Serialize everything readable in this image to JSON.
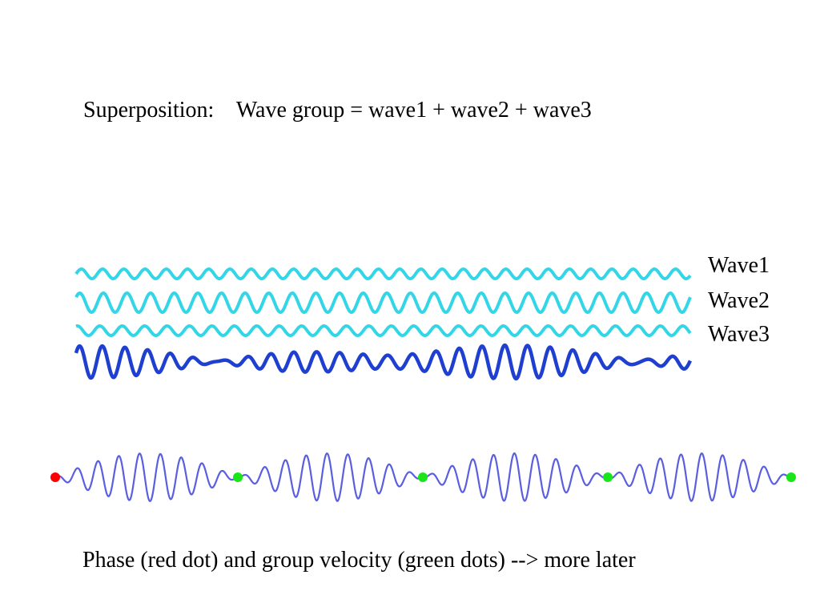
{
  "slide": {
    "title": "Superposition:    Wave group = wave1 + wave2 + wave3",
    "caption": "Phase (red dot) and group velocity (green dots) --> more later",
    "wave_labels": [
      "Wave1",
      "Wave2",
      "Wave3"
    ]
  },
  "colors": {
    "component_wave": "#33d6e6",
    "sum_wave": "#1f3fd1",
    "packet_wave": "#5a5fe0",
    "phase_dot": "#ff0000",
    "group_dot": "#19e619"
  }
}
